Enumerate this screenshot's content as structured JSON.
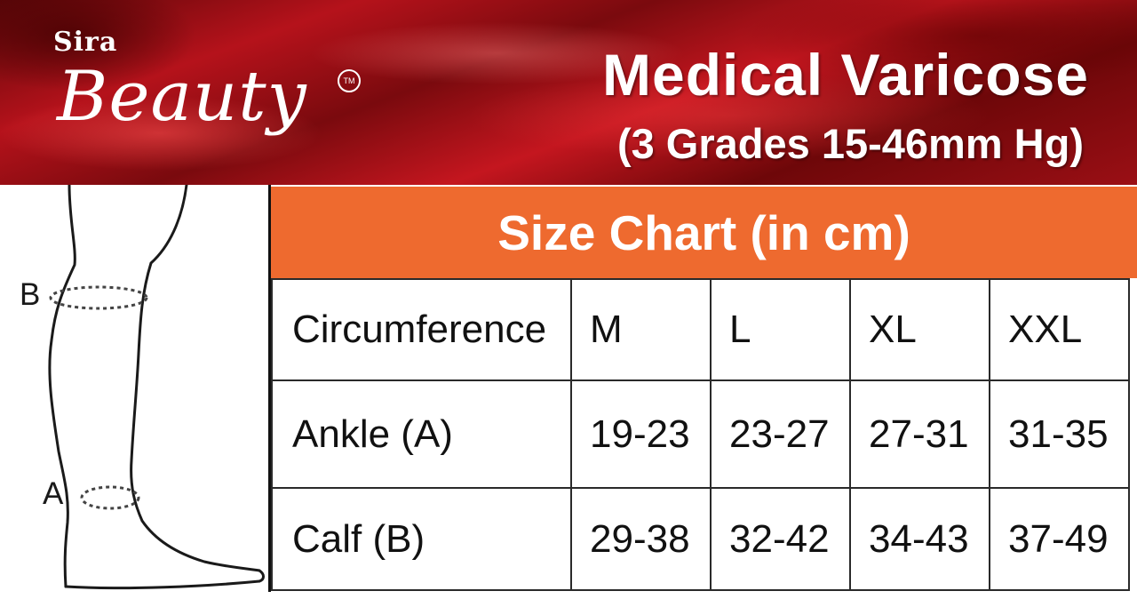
{
  "brand": {
    "prefix": "Sira",
    "name": "Beauty",
    "trademark": "TM"
  },
  "product": {
    "title": "Medical Varicose",
    "subtitle": "(3 Grades 15-46mm Hg)"
  },
  "diagram": {
    "label_b": "B",
    "label_a": "A"
  },
  "size_chart": {
    "heading": "Size Chart (in cm)",
    "header_row": [
      "Circumference",
      "M",
      "L",
      "XL",
      "XXL"
    ],
    "rows": [
      [
        "Ankle (A)",
        "19-23",
        "23-27",
        "27-31",
        "31-35"
      ],
      [
        "Calf (B)",
        "29-38",
        "32-42",
        "34-43",
        "37-49"
      ]
    ]
  },
  "colors": {
    "header_orange": "#ee6a2f",
    "banner_red": "#b5121b"
  }
}
